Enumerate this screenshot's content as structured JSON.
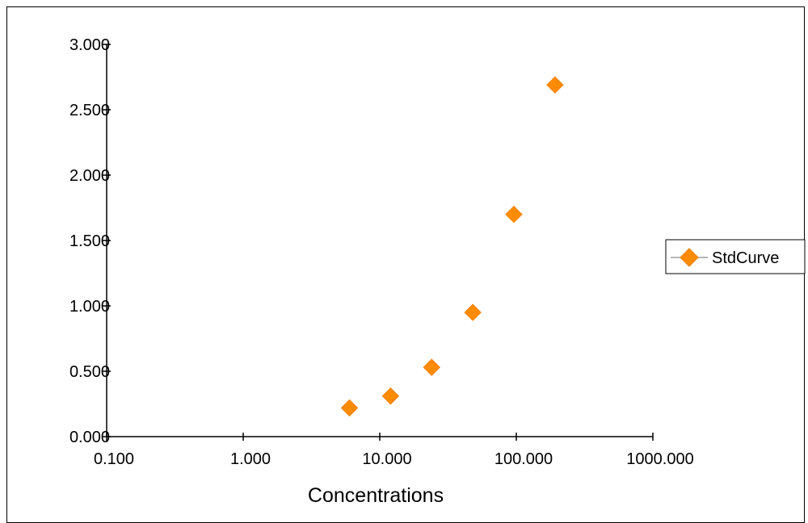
{
  "chart_data": {
    "type": "scatter",
    "title": "",
    "xlabel": "Concentrations",
    "ylabel": "",
    "x_scale": "log",
    "xlim": [
      0.1,
      1000
    ],
    "ylim": [
      0,
      3
    ],
    "x_tick_values": [
      0.1,
      1,
      10,
      100,
      1000
    ],
    "x_tick_labels": [
      "0.100",
      "1.000",
      "10.000",
      "100.000",
      "1000.000"
    ],
    "y_tick_values": [
      0,
      0.5,
      1,
      1.5,
      2,
      2.5,
      3
    ],
    "y_tick_labels": [
      "0.000",
      "0.500",
      "1.000",
      "1.500",
      "2.000",
      "2.500",
      "3.000"
    ],
    "grid": false,
    "legend_position": "right",
    "series": [
      {
        "name": "StdCurve",
        "color": "#FF8C00",
        "marker": "diamond",
        "x": [
          6.0,
          12.0,
          24.0,
          48.0,
          96.0,
          192.0
        ],
        "y": [
          0.22,
          0.31,
          0.53,
          0.95,
          1.7,
          2.69
        ]
      }
    ]
  }
}
